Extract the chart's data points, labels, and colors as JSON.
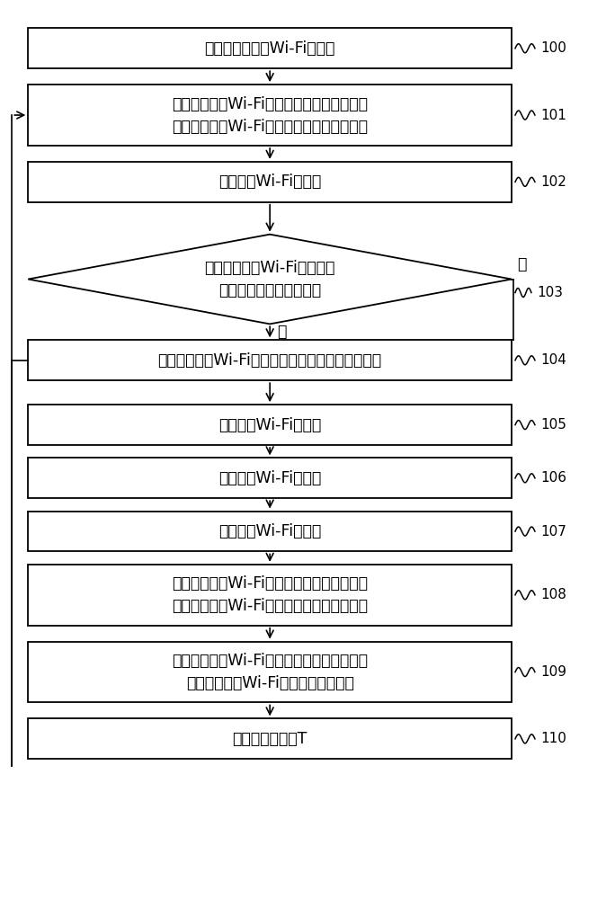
{
  "bg_color": "#ffffff",
  "figsize": [
    6.74,
    10.0
  ],
  "dpi": 100,
  "boxes": {
    "100": {
      "label": "初始化待设置的Wi-Fi路由器",
      "lines": 1
    },
    "101": {
      "label": "根据所有第四Wi-Fi路由器的工作信道的合集\n确定待设置的Wi-Fi路由器的可选信道的集合",
      "lines": 2
    },
    "102": {
      "label": "设置第一Wi-Fi路由器",
      "lines": 1
    },
    "103": {
      "label": "判断所有第一Wi-Fi路由器的\n功率是否均小于功率阈值",
      "lines": 2,
      "type": "diamond"
    },
    "104": {
      "label": "设置待设置的Wi-Fi路由器的工作信道为一预设信道",
      "lines": 1
    },
    "105": {
      "label": "设置第二Wi-Fi路由器",
      "lines": 1
    },
    "106": {
      "label": "设置第三Wi-Fi路由器",
      "lines": 1
    },
    "107": {
      "label": "设置第四Wi-Fi路由器",
      "lines": 1
    },
    "108": {
      "label": "根据所有第四Wi-Fi路由器的工作信道的合集\n确定待设置的Wi-Fi路由器的可选信道的集合",
      "lines": 2
    },
    "109": {
      "label": "根据待设置的Wi-Fi路由器的可选信道的集合\n设置待设置的Wi-Fi路由器的工作信道",
      "lines": 2
    },
    "110": {
      "label": "等待一预设时间T",
      "lines": 1
    }
  },
  "yes_label": "是",
  "no_label": "否",
  "font_size_main": 12.5,
  "font_size_tag": 11,
  "font_size_label": 11
}
